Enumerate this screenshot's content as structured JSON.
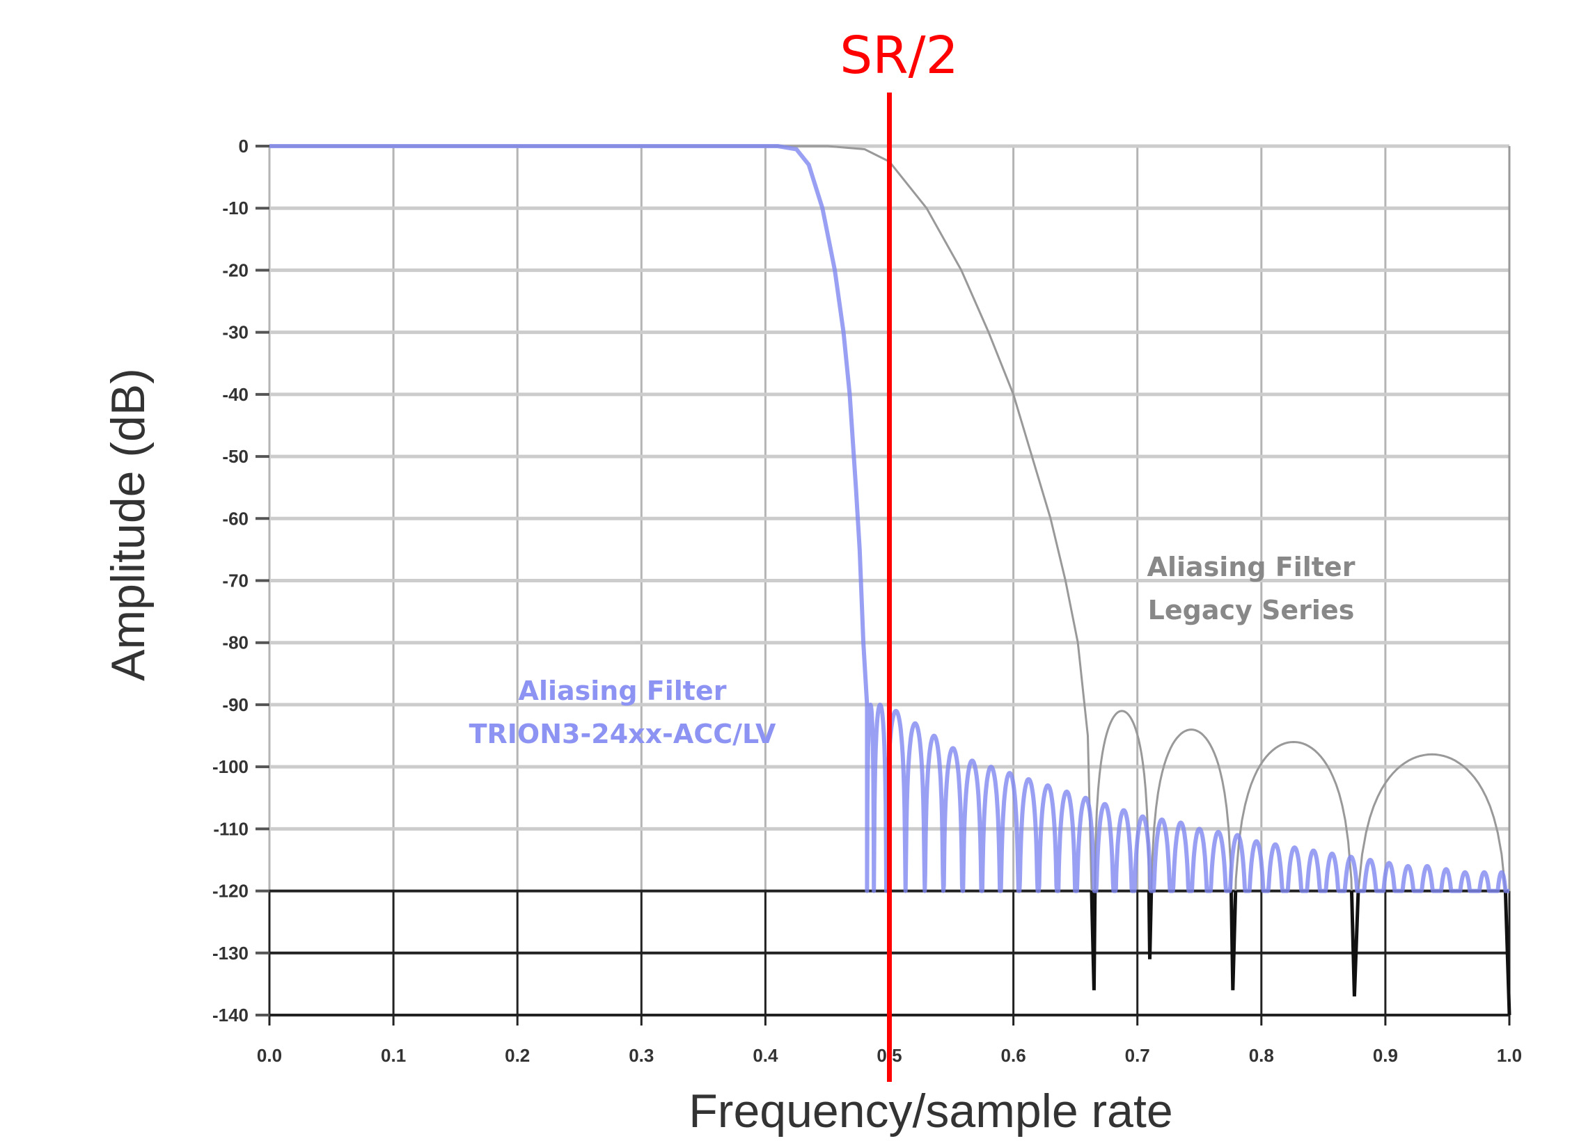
{
  "chart_data": {
    "type": "line",
    "xlabel": "Frequency/sample rate",
    "ylabel": "Amplitude (dB)",
    "xlim": [
      0.0,
      1.0
    ],
    "ylim": [
      -140,
      0
    ],
    "xticks": [
      "0.0",
      "0.1",
      "0.2",
      "0.3",
      "0.4",
      "0.5",
      "0.6",
      "0.7",
      "0.8",
      "0.9",
      "1.0"
    ],
    "yticks": [
      "0",
      "-10",
      "-20",
      "-30",
      "-40",
      "-50",
      "-60",
      "-70",
      "-80",
      "-90",
      "-100",
      "-110",
      "-120",
      "-130",
      "-140"
    ],
    "grid": true,
    "marker_line": {
      "label": "SR/2",
      "x": 0.5,
      "color": "#ff0000"
    },
    "annotations": [
      {
        "lines": [
          "Aliasing Filter",
          "TRION3-24xx-ACC/LV"
        ],
        "color": "#8c93f2"
      },
      {
        "lines": [
          "Aliasing Filter",
          "Legacy Series"
        ],
        "color": "#888888"
      }
    ],
    "series": [
      {
        "label_ref": "TRION3-24xx-ACC/LV",
        "color": "#7f88f0",
        "floor_db": -120,
        "rolloff": [
          [
            0,
            0
          ],
          [
            0.41,
            0
          ],
          [
            0.425,
            -0.5
          ],
          [
            0.435,
            -3
          ],
          [
            0.446,
            -10
          ],
          [
            0.456,
            -20
          ],
          [
            0.463,
            -30
          ],
          [
            0.468,
            -40
          ],
          [
            0.473,
            -55
          ],
          [
            0.476,
            -65
          ],
          [
            0.479,
            -80
          ],
          [
            0.482,
            -90
          ]
        ],
        "sidelobe_peaks": [
          [
            0.485,
            -90
          ],
          [
            0.49,
            -90
          ],
          [
            0.505,
            -91
          ],
          [
            0.521,
            -93
          ],
          [
            0.536,
            -95
          ],
          [
            0.551,
            -97
          ],
          [
            0.567,
            -99
          ],
          [
            0.582,
            -100
          ],
          [
            0.597,
            -101
          ],
          [
            0.612,
            -102
          ],
          [
            0.628,
            -103
          ],
          [
            0.643,
            -104
          ],
          [
            0.658,
            -105
          ],
          [
            0.674,
            -106
          ],
          [
            0.689,
            -107
          ],
          [
            0.704,
            -108
          ],
          [
            0.72,
            -108.5
          ],
          [
            0.735,
            -109
          ],
          [
            0.75,
            -110
          ],
          [
            0.765,
            -110.5
          ],
          [
            0.781,
            -111
          ],
          [
            0.796,
            -112
          ],
          [
            0.811,
            -112.5
          ],
          [
            0.827,
            -113
          ],
          [
            0.842,
            -113.5
          ],
          [
            0.857,
            -114
          ],
          [
            0.872,
            -114.5
          ],
          [
            0.888,
            -115
          ],
          [
            0.903,
            -115.5
          ],
          [
            0.918,
            -116
          ],
          [
            0.934,
            -116
          ],
          [
            0.949,
            -116.5
          ],
          [
            0.964,
            -117
          ],
          [
            0.98,
            -117
          ],
          [
            0.995,
            -117
          ]
        ]
      },
      {
        "label_ref": "Legacy Series",
        "color": "#999999",
        "rolloff": [
          [
            0,
            0
          ],
          [
            0.45,
            0
          ],
          [
            0.48,
            -0.5
          ],
          [
            0.5,
            -2.5
          ],
          [
            0.53,
            -10
          ],
          [
            0.558,
            -20
          ],
          [
            0.58,
            -30
          ],
          [
            0.6,
            -40
          ],
          [
            0.615,
            -50
          ],
          [
            0.63,
            -60
          ],
          [
            0.642,
            -70
          ],
          [
            0.652,
            -80
          ],
          [
            0.66,
            -95
          ],
          [
            0.665,
            -136
          ]
        ],
        "lobes": [
          {
            "null_start": [
              0.665,
              -136
            ],
            "peak": [
              0.685,
              -91
            ],
            "null_end": [
              0.71,
              -131
            ]
          },
          {
            "null_start": [
              0.71,
              -131
            ],
            "peak": [
              0.745,
              -94
            ],
            "null_end": [
              0.777,
              -136
            ]
          },
          {
            "null_start": [
              0.777,
              -136
            ],
            "peak": [
              0.815,
              -96
            ],
            "null_end": [
              0.875,
              -137
            ]
          },
          {
            "null_start": [
              0.875,
              -137
            ],
            "peak": [
              0.93,
              -98
            ],
            "null_end": [
              1.0,
              -140
            ]
          }
        ]
      }
    ]
  }
}
